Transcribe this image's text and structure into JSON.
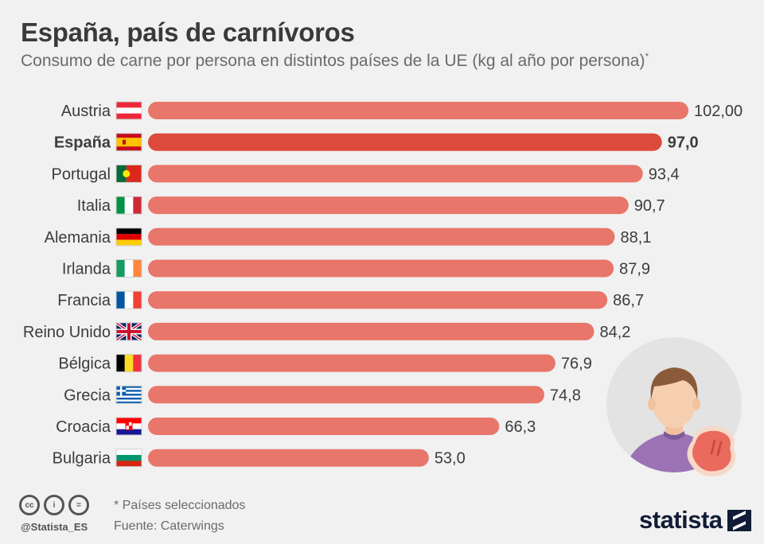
{
  "header": {
    "title": "España, país de carnívoros",
    "subtitle": "Consumo de carne por persona en distintos países de la UE (kg al año por persona)",
    "subtitle_mark": "*"
  },
  "chart_data": {
    "type": "bar",
    "orientation": "horizontal",
    "title": "España, país de carnívoros",
    "subtitle": "Consumo de carne por persona en distintos países de la UE (kg al año por persona)",
    "categories": [
      "Austria",
      "España",
      "Portugal",
      "Italia",
      "Alemania",
      "Irlanda",
      "Francia",
      "Reino Unido",
      "Bélgica",
      "Grecia",
      "Croacia",
      "Bulgaria"
    ],
    "values": [
      102.0,
      97.0,
      93.4,
      90.7,
      88.1,
      87.9,
      86.7,
      84.2,
      76.9,
      74.8,
      66.3,
      53.0
    ],
    "value_labels": [
      "102,00",
      "97,0",
      "93,4",
      "90,7",
      "88,1",
      "87,9",
      "86,7",
      "84,2",
      "76,9",
      "74,8",
      "66,3",
      "53,0"
    ],
    "highlight": "España",
    "xlim": [
      0,
      102
    ],
    "grid": false,
    "colors": {
      "bar": "#e8766a",
      "highlight": "#dc4a3c"
    },
    "flag_icons": [
      "austria-flag-icon",
      "spain-flag-icon",
      "portugal-flag-icon",
      "italy-flag-icon",
      "germany-flag-icon",
      "ireland-flag-icon",
      "france-flag-icon",
      "uk-flag-icon",
      "belgium-flag-icon",
      "greece-flag-icon",
      "croatia-flag-icon",
      "bulgaria-flag-icon"
    ]
  },
  "footer": {
    "note": "* Países seleccionados",
    "source": "Fuente: Caterwings",
    "handle": "@Statista_ES",
    "brand": "statista",
    "license_icons": [
      "cc-icon",
      "by-icon",
      "nd-icon"
    ],
    "license_labels": [
      "cc",
      "i",
      "="
    ]
  }
}
